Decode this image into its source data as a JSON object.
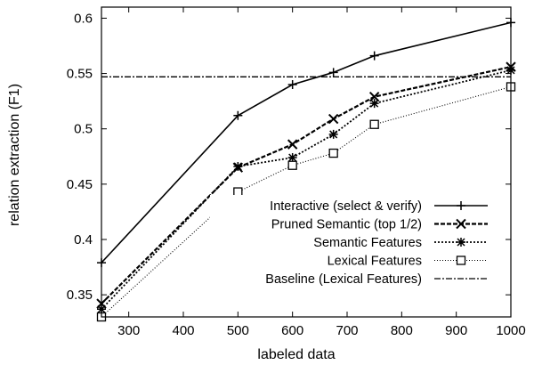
{
  "chart_data": {
    "type": "line",
    "title": "",
    "xlabel": "labeled data",
    "ylabel": "relation extraction (F1)",
    "xlim": [
      250,
      1000
    ],
    "ylim": [
      0.33,
      0.61
    ],
    "xticks": [
      300,
      400,
      500,
      600,
      700,
      800,
      900,
      1000
    ],
    "yticks": [
      0.35,
      0.4,
      0.45,
      0.5,
      0.55,
      0.6
    ],
    "x": [
      250,
      500,
      600,
      675,
      750,
      1000
    ],
    "grid": false,
    "legend_position": "bottom-right",
    "series": [
      {
        "name": "Interactive (select & verify)",
        "marker": "plus",
        "line": "solid",
        "values": [
          0.379,
          0.512,
          0.54,
          0.551,
          0.566,
          0.596
        ]
      },
      {
        "name": "Pruned Semantic (top 1/2)",
        "marker": "cross",
        "line": "dashed",
        "values": [
          0.342,
          0.465,
          0.486,
          0.509,
          0.529,
          0.556
        ]
      },
      {
        "name": "Semantic Features",
        "marker": "star",
        "line": "dotted",
        "values": [
          0.337,
          0.466,
          0.474,
          0.495,
          0.523,
          0.553
        ]
      },
      {
        "name": "Lexical Features",
        "marker": "box",
        "line": "finedotted",
        "values": [
          0.33,
          0.443,
          0.467,
          0.478,
          0.504,
          0.538
        ]
      },
      {
        "name": "Baseline (Lexical Features)",
        "marker": "none",
        "line": "dashdot",
        "values": [
          0.547,
          0.547,
          0.547,
          0.547,
          0.547,
          0.547
        ]
      }
    ]
  }
}
